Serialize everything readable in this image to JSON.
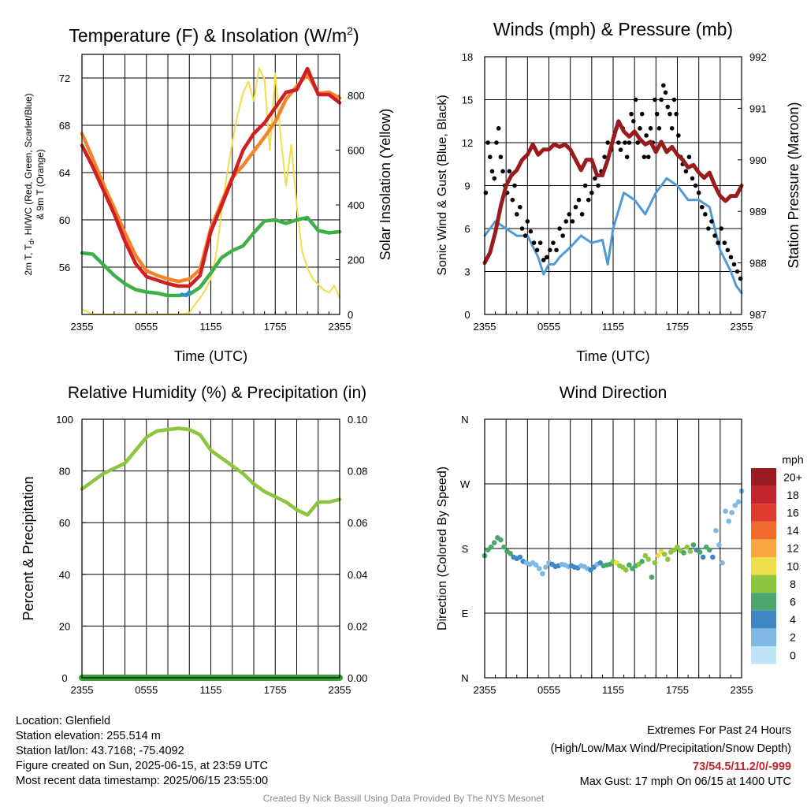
{
  "chart_data": [
    {
      "type": "line",
      "title_main": "Temperature (F) & Insolation (W/m",
      "title_sup": "2",
      "title_close": ")",
      "xlabel": "Time (UTC)",
      "ylabel_lines": [
        "2m T, T",
        "d",
        ", HI/WC (Red, Green, Scarlet/Blue)",
        "& 9m T (Orange)"
      ],
      "y2label": "Solar Insolation (Yellow)",
      "x_ticks": [
        "2355",
        "0555",
        "1155",
        "1755",
        "2355"
      ],
      "x_range_hours": [
        0,
        24
      ],
      "ylim": [
        52,
        74
      ],
      "y_ticks": [
        56,
        60,
        64,
        68,
        72
      ],
      "y2lim": [
        0,
        950
      ],
      "y2_ticks": [
        0,
        200,
        400,
        600,
        800
      ],
      "grid": true,
      "series": [
        {
          "color": "#f2842b",
          "x": [
            0,
            1,
            2,
            3,
            4,
            5,
            6,
            7,
            8,
            9,
            10,
            11,
            12,
            13,
            14,
            15,
            16,
            17,
            18,
            19,
            20,
            21,
            22,
            23,
            24
          ],
          "values": [
            67.3,
            65.2,
            63.0,
            61.0,
            58.9,
            57.0,
            55.7,
            55.3,
            55.0,
            54.8,
            55.0,
            55.8,
            59.3,
            61.5,
            63.6,
            64.6,
            65.8,
            67.0,
            68.3,
            70.2,
            71.3,
            72.3,
            70.7,
            70.8,
            70.3
          ]
        },
        {
          "color": "#cf1f23",
          "x": [
            0,
            1,
            2,
            3,
            4,
            5,
            6,
            7,
            8,
            9,
            10,
            11,
            12,
            13,
            14,
            15,
            16,
            17,
            18,
            19,
            20,
            21,
            22,
            23,
            24
          ],
          "values": [
            66.3,
            64.5,
            62.5,
            60.5,
            58.2,
            56.3,
            55.2,
            54.9,
            54.6,
            54.4,
            54.4,
            55.3,
            59.0,
            61.2,
            63.5,
            65.9,
            67.3,
            68.2,
            69.5,
            70.8,
            71.0,
            72.8,
            70.6,
            70.6,
            69.9
          ]
        },
        {
          "color": "#2f8fd1",
          "x": [
            9.3,
            9.7,
            10.0
          ],
          "values": [
            53.7,
            53.6,
            53.9
          ]
        },
        {
          "color": "#3db048",
          "x": [
            0,
            1,
            2,
            3,
            4,
            5,
            6,
            7,
            8,
            9,
            10,
            11,
            12,
            13,
            14,
            15,
            16,
            17,
            18,
            19,
            20,
            21,
            22,
            23,
            24
          ],
          "values": [
            57.2,
            57.1,
            56.2,
            55.3,
            54.6,
            54.1,
            53.9,
            53.8,
            53.6,
            53.6,
            53.7,
            54.3,
            55.5,
            56.8,
            57.4,
            57.8,
            58.9,
            59.9,
            60.0,
            59.7,
            60.0,
            60.2,
            59.1,
            58.9,
            59.0
          ]
        },
        {
          "color": "#f4dd4a",
          "x": [
            0,
            1,
            2,
            3,
            4,
            5,
            6,
            7,
            7.5,
            8,
            8.5,
            9,
            10,
            10.5,
            11,
            11.5,
            12,
            12.5,
            13,
            13.5,
            14,
            14.5,
            15,
            15.5,
            16,
            16.5,
            17,
            17.5,
            18,
            18.5,
            19,
            19.5,
            20,
            20.5,
            21,
            21.5,
            22,
            22.5,
            23,
            23.5,
            24
          ],
          "values": [
            20,
            0,
            0,
            0,
            0,
            0,
            0,
            0,
            0,
            0,
            0,
            0,
            5,
            35,
            60,
            90,
            130,
            220,
            370,
            510,
            630,
            730,
            810,
            850,
            780,
            900,
            860,
            600,
            880,
            650,
            470,
            620,
            400,
            230,
            170,
            130,
            110,
            90,
            80,
            105,
            60
          ]
        }
      ]
    },
    {
      "type": "line",
      "title": "Winds (mph) & Pressure (mb)",
      "xlabel": "Time (UTC)",
      "ylabel": "Sonic Wind & Gust (Blue, Black)",
      "y2label": "Station Pressure (Maroon)",
      "x_ticks": [
        "2355",
        "0555",
        "1155",
        "1755",
        "2355"
      ],
      "x_range_hours": [
        0,
        24
      ],
      "ylim": [
        0,
        18
      ],
      "y_ticks": [
        0,
        3,
        6,
        9,
        12,
        15,
        18
      ],
      "y2lim": [
        987,
        992
      ],
      "y2_ticks": [
        987,
        988,
        989,
        990,
        991,
        992
      ],
      "grid": true,
      "series": [
        {
          "color": "#4f9ad6",
          "x": [
            0,
            1,
            2,
            3,
            4,
            5,
            5.5,
            6,
            6.5,
            7,
            8,
            9,
            10,
            11,
            11.5,
            12,
            13,
            14,
            15,
            16,
            17,
            18,
            19,
            20,
            21,
            22,
            23,
            23.5,
            24
          ],
          "values": [
            5.5,
            6.5,
            6.0,
            5.5,
            5.5,
            4.0,
            2.8,
            3.5,
            3.5,
            4.0,
            4.7,
            5.5,
            5.0,
            5.2,
            3.5,
            6.0,
            8.5,
            8.0,
            7.0,
            8.5,
            9.5,
            9.0,
            8.0,
            8.0,
            7.5,
            4.5,
            3.0,
            2.0,
            1.5
          ]
        },
        {
          "color": "#9a1b1e",
          "x": [
            0,
            0.5,
            1,
            1.5,
            2,
            2.5,
            3,
            3.5,
            4,
            4.5,
            5,
            5.5,
            6,
            6.5,
            7,
            7.5,
            8,
            8.5,
            9,
            9.5,
            10,
            10.5,
            11,
            11.5,
            12,
            12.5,
            13,
            13.5,
            14,
            14.5,
            15,
            15.5,
            16,
            16.5,
            17,
            17.5,
            18,
            18.5,
            19,
            19.5,
            20,
            20.5,
            21,
            21.5,
            22,
            22.5,
            23,
            23.5,
            24
          ],
          "values": [
            988.0,
            988.2,
            988.6,
            989.1,
            989.5,
            989.7,
            989.8,
            990.0,
            990.1,
            990.3,
            990.1,
            990.2,
            990.2,
            990.3,
            990.25,
            990.3,
            990.2,
            990.0,
            989.8,
            990.0,
            990.0,
            989.7,
            989.7,
            990.0,
            990.4,
            990.75,
            990.55,
            990.45,
            990.55,
            990.4,
            990.3,
            990.35,
            990.15,
            990.35,
            990.15,
            990.25,
            990.1,
            990.0,
            989.85,
            989.9,
            989.75,
            989.65,
            989.75,
            989.5,
            989.3,
            989.2,
            989.3,
            989.3,
            989.5
          ]
        },
        {
          "color": "#000000",
          "type": "scatter",
          "x": [
            0.1,
            0.3,
            0.5,
            0.7,
            0.9,
            1.1,
            1.3,
            1.5,
            1.7,
            1.9,
            2.1,
            2.3,
            2.6,
            2.8,
            3.0,
            3.3,
            3.5,
            3.8,
            4.0,
            4.3,
            4.6,
            4.9,
            5.2,
            5.5,
            5.8,
            6.1,
            6.4,
            6.7,
            7.0,
            7.3,
            7.6,
            7.9,
            8.2,
            8.5,
            8.8,
            9.1,
            9.4,
            9.7,
            10.0,
            10.3,
            10.6,
            10.9,
            11.2,
            11.5,
            11.8,
            12.1,
            12.3,
            12.5,
            12.7,
            12.9,
            13.1,
            13.3,
            13.5,
            13.7,
            13.9,
            14.1,
            14.3,
            14.5,
            14.7,
            14.9,
            15.1,
            15.3,
            15.5,
            15.7,
            15.9,
            16.1,
            16.3,
            16.5,
            16.7,
            16.9,
            17.1,
            17.3,
            17.5,
            17.7,
            17.9,
            18.1,
            18.3,
            18.5,
            18.8,
            19.1,
            19.4,
            19.7,
            20.0,
            20.3,
            20.6,
            20.9,
            21.2,
            21.5,
            21.8,
            22.1,
            22.4,
            22.7,
            23.0,
            23.3,
            23.6,
            23.9
          ],
          "values": [
            8.5,
            12,
            11,
            10,
            9.5,
            12,
            13,
            11,
            10,
            9,
            8.5,
            10,
            8,
            9,
            7,
            7.5,
            6,
            5.5,
            6.5,
            5.8,
            5,
            4.5,
            5,
            3.8,
            4,
            4.5,
            5,
            4.5,
            6,
            5.5,
            6.5,
            7,
            6.5,
            7.5,
            8,
            7,
            9,
            8,
            8.5,
            9.5,
            9,
            10,
            11,
            12,
            11.5,
            12.5,
            13,
            12,
            11.5,
            13,
            12,
            11,
            12,
            14,
            13.5,
            15,
            12,
            13,
            14,
            11,
            12.5,
            11,
            13,
            12,
            15,
            14,
            13,
            15,
            16,
            15.5,
            14.5,
            14,
            13,
            15,
            14,
            12.5,
            11,
            10.5,
            10,
            11,
            9.5,
            9,
            8.5,
            7.5,
            7,
            6,
            6.5,
            5.5,
            5,
            6,
            5,
            4.5,
            4,
            3.5,
            3,
            2.5
          ]
        }
      ]
    },
    {
      "type": "line",
      "title": "Relative Humidity (%) & Precipitation (in)",
      "ylabel": "Percent & Precipitation",
      "x_ticks": [
        "2355",
        "0555",
        "1155",
        "1755",
        "2355"
      ],
      "x_range_hours": [
        0,
        24
      ],
      "ylim": [
        0,
        100
      ],
      "y_ticks": [
        0,
        20,
        40,
        60,
        80,
        100
      ],
      "y2lim": [
        0,
        0.1
      ],
      "y2_ticks": [
        "0.00",
        "0.02",
        "0.04",
        "0.06",
        "0.08",
        "0.10"
      ],
      "grid": true,
      "series": [
        {
          "color": "#8cc63f",
          "x": [
            0,
            1,
            2,
            3,
            4,
            5,
            6,
            7,
            8,
            9,
            10,
            11,
            12,
            13,
            14,
            15,
            16,
            17,
            18,
            19,
            20,
            21,
            22,
            23,
            24
          ],
          "values": [
            73,
            76,
            79,
            81,
            83,
            88,
            93,
            95.5,
            96,
            96.5,
            96,
            94,
            88,
            85,
            82,
            79,
            75,
            72,
            70,
            68,
            65,
            63,
            68,
            68,
            69
          ]
        },
        {
          "color": "#3aa03a",
          "x": [
            0,
            24
          ],
          "values": [
            0,
            0
          ]
        }
      ]
    },
    {
      "type": "scatter",
      "title": "Wind Direction",
      "ylabel": "Direction (Colored By Speed)",
      "x_ticks": [
        "2355",
        "0555",
        "1155",
        "1755",
        "2355"
      ],
      "x_range_hours": [
        0,
        24
      ],
      "y_labels": [
        "N",
        "E",
        "S",
        "W",
        "N"
      ],
      "y_range_deg": [
        0,
        360
      ],
      "grid": true,
      "legend_title": "mph",
      "legend_labels": [
        "20+",
        "18",
        "16",
        "14",
        "12",
        "10",
        "8",
        "6",
        "4",
        "2",
        "0"
      ],
      "legend_colors": [
        "#9b1c20",
        "#c0262b",
        "#e03a2f",
        "#f06a2a",
        "#f8a641",
        "#eede4c",
        "#8cc63f",
        "#4aa66a",
        "#3f86c4",
        "#7fb8e3",
        "#bfe3f7"
      ],
      "points": {
        "x": [
          0.0,
          0.3,
          0.6,
          0.9,
          1.2,
          1.5,
          1.8,
          2.1,
          2.4,
          2.7,
          3.0,
          3.3,
          3.6,
          3.9,
          4.2,
          4.5,
          4.8,
          5.1,
          5.4,
          5.7,
          6.0,
          6.3,
          6.6,
          6.9,
          7.2,
          7.5,
          7.8,
          8.1,
          8.4,
          8.7,
          9.0,
          9.3,
          9.6,
          9.9,
          10.2,
          10.5,
          10.8,
          11.1,
          11.4,
          11.7,
          12.0,
          12.3,
          12.6,
          12.9,
          13.2,
          13.5,
          13.8,
          14.1,
          14.4,
          14.7,
          15.0,
          15.3,
          15.6,
          15.9,
          16.2,
          16.5,
          16.8,
          17.1,
          17.4,
          17.7,
          18.0,
          18.3,
          18.6,
          18.9,
          19.2,
          19.5,
          19.8,
          20.1,
          20.4,
          20.7,
          21.0,
          21.3,
          21.6,
          21.9,
          22.2,
          22.5,
          22.8,
          23.1,
          23.4,
          23.7,
          24.0
        ],
        "deg": [
          170,
          178,
          182,
          188,
          195,
          192,
          182,
          176,
          173,
          168,
          166,
          168,
          162,
          160,
          158,
          160,
          157,
          152,
          145,
          154,
          160,
          158,
          155,
          156,
          158,
          157,
          155,
          156,
          154,
          153,
          156,
          155,
          152,
          150,
          154,
          158,
          160,
          156,
          157,
          158,
          162,
          160,
          156,
          154,
          150,
          157,
          152,
          156,
          158,
          162,
          170,
          165,
          140,
          160,
          170,
          176,
          172,
          165,
          175,
          178,
          182,
          177,
          174,
          182,
          176,
          185,
          178,
          175,
          168,
          182,
          178,
          168,
          205,
          185,
          160,
          232,
          218,
          230,
          240,
          245,
          260
        ],
        "speed": [
          6,
          6,
          7,
          7,
          7,
          6,
          6,
          7,
          6,
          5,
          4,
          4,
          4,
          3,
          3,
          3,
          2,
          3,
          3,
          3,
          3,
          4,
          4,
          4,
          3,
          3,
          3,
          4,
          4,
          4,
          3,
          3,
          3,
          4,
          4,
          3,
          5,
          6,
          7,
          7,
          9,
          10,
          9,
          8,
          9,
          7,
          7,
          6,
          8,
          7,
          8,
          9,
          7,
          8,
          10,
          11,
          9,
          8,
          8,
          9,
          9,
          8,
          7,
          9,
          8,
          7,
          5,
          6,
          4,
          6,
          7,
          4,
          3,
          3,
          2,
          2,
          2,
          2,
          3,
          2,
          2
        ]
      }
    }
  ],
  "info": {
    "location": "Location: Glenfield",
    "elevation": "Station elevation: 255.514 m",
    "latlon": "Station lat/lon: 43.7168; -75.4092",
    "created": "Figure created on Sun, 2025-06-15, at 23:59 UTC",
    "recent": "Most recent data timestamp: 2025/06/15 23:55:00",
    "extremes_title": "Extremes For Past 24 Hours",
    "extremes_subtitle": "(High/Low/Max Wind/Precipitation/Snow Depth)",
    "extremes_values": "73/54.5/11.2/0/-999",
    "max_gust": "Max Gust: 17 mph On 06/15 at 1400 UTC",
    "credit": "Created By Nick Bassill Using Data Provided By The NYS Mesonet"
  }
}
